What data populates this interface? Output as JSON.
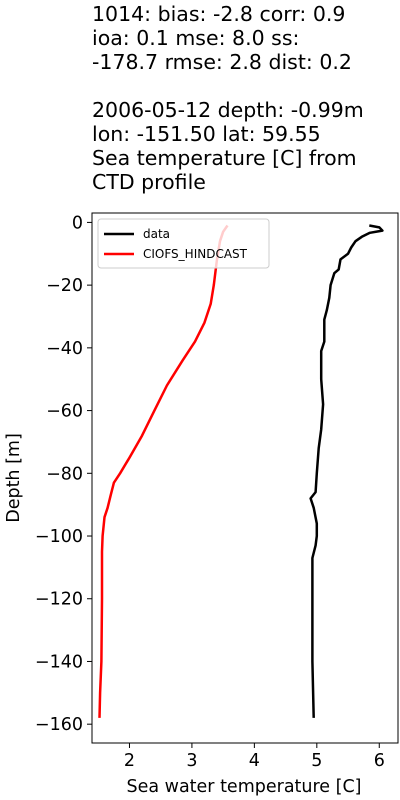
{
  "title_lines": [
    "1014: bias: -2.8  corr: 0.9",
    "ioa: 0.1  mse: 8.0  ss:",
    "-178.7  rmse: 2.8  dist: 0.2",
    "",
    "2006-05-12 depth: -0.99m",
    "lon: -151.50 lat: 59.55",
    "Sea temperature [C] from",
    "CTD profile"
  ],
  "chart_data": {
    "type": "line",
    "xlabel": "Sea water temperature [C]",
    "ylabel": "Depth [m]",
    "xlim": [
      1.4,
      6.3
    ],
    "ylim": [
      -166,
      3
    ],
    "xticks": [
      2,
      3,
      4,
      5,
      6
    ],
    "yticks": [
      0,
      -20,
      -40,
      -60,
      -80,
      -100,
      -120,
      -140,
      -160
    ],
    "grid": false,
    "legend": "upper-left",
    "colors": {
      "data": "#000000",
      "CIOFS_HINDCAST": "#ff0000"
    },
    "series": [
      {
        "name": "data",
        "color": "#000000",
        "points": [
          [
            5.84,
            -1.0
          ],
          [
            6.0,
            -1.6
          ],
          [
            6.05,
            -2.6
          ],
          [
            5.85,
            -3.3
          ],
          [
            5.72,
            -4.6
          ],
          [
            5.62,
            -6.0
          ],
          [
            5.55,
            -8.0
          ],
          [
            5.5,
            -10.0
          ],
          [
            5.38,
            -11.8
          ],
          [
            5.35,
            -15.0
          ],
          [
            5.28,
            -16.2
          ],
          [
            5.22,
            -20.0
          ],
          [
            5.2,
            -24.0
          ],
          [
            5.16,
            -28.0
          ],
          [
            5.12,
            -31.0
          ],
          [
            5.12,
            -38.0
          ],
          [
            5.07,
            -41.0
          ],
          [
            5.07,
            -50.0
          ],
          [
            5.1,
            -58.0
          ],
          [
            5.07,
            -66.0
          ],
          [
            5.03,
            -72.0
          ],
          [
            5.0,
            -80.0
          ],
          [
            4.98,
            -86.0
          ],
          [
            4.9,
            -88.0
          ],
          [
            4.95,
            -91.0
          ],
          [
            5.0,
            -96.0
          ],
          [
            5.0,
            -100.0
          ],
          [
            4.98,
            -103.0
          ],
          [
            4.93,
            -107.0
          ],
          [
            4.93,
            -120.0
          ],
          [
            4.93,
            -140.0
          ],
          [
            4.95,
            -158.0
          ]
        ]
      },
      {
        "name": "CIOFS_HINDCAST",
        "color": "#ff0000",
        "points": [
          [
            3.57,
            -1.0
          ],
          [
            3.5,
            -3.0
          ],
          [
            3.45,
            -6.0
          ],
          [
            3.4,
            -12.0
          ],
          [
            3.35,
            -20.0
          ],
          [
            3.3,
            -26.0
          ],
          [
            3.2,
            -32.0
          ],
          [
            3.05,
            -38.0
          ],
          [
            2.85,
            -44.0
          ],
          [
            2.6,
            -52.0
          ],
          [
            2.4,
            -60.0
          ],
          [
            2.2,
            -68.0
          ],
          [
            2.0,
            -75.0
          ],
          [
            1.85,
            -80.0
          ],
          [
            1.75,
            -83.0
          ],
          [
            1.7,
            -87.0
          ],
          [
            1.65,
            -91.0
          ],
          [
            1.6,
            -94.0
          ],
          [
            1.57,
            -100.0
          ],
          [
            1.56,
            -105.0
          ],
          [
            1.56,
            -120.0
          ],
          [
            1.55,
            -140.0
          ],
          [
            1.53,
            -150.0
          ],
          [
            1.52,
            -158.0
          ]
        ]
      }
    ]
  }
}
